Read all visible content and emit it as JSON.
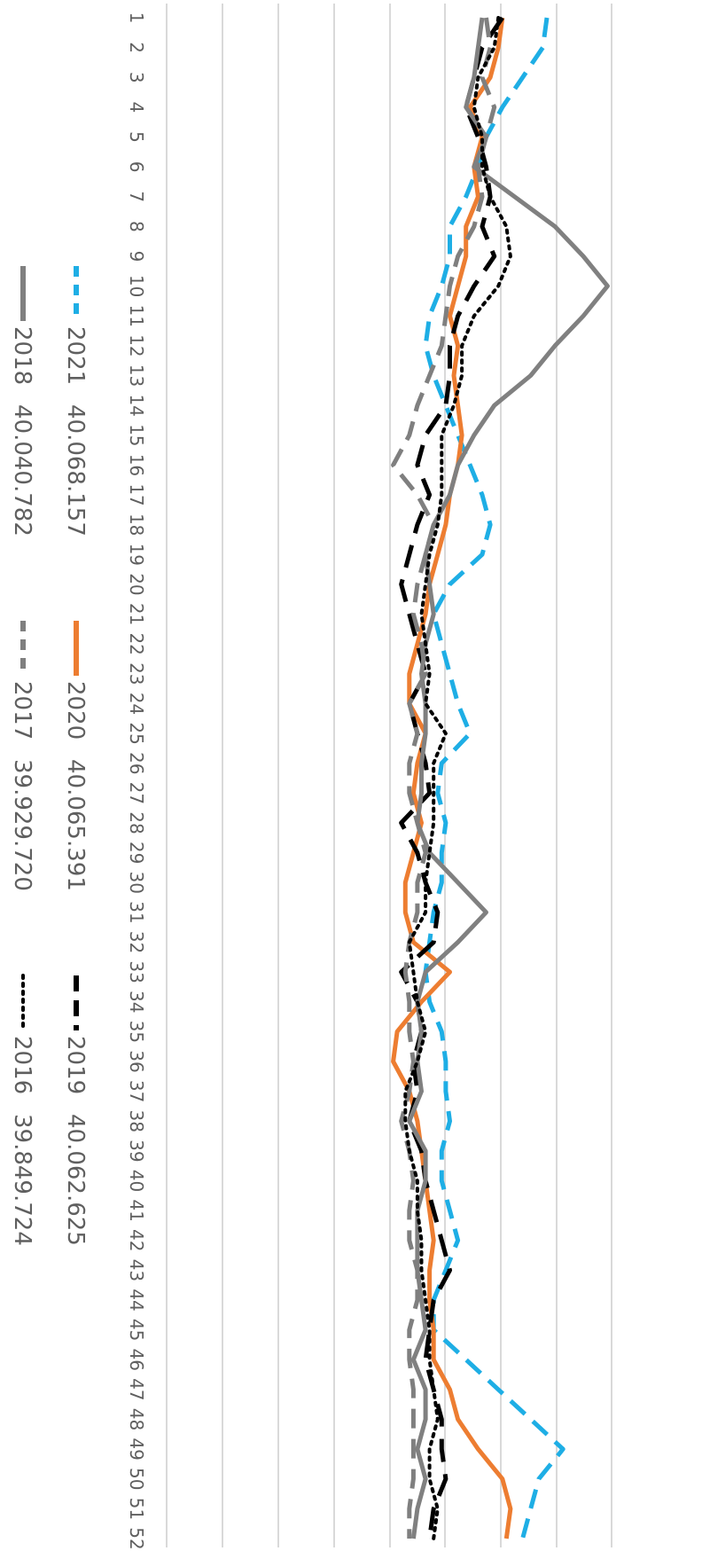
{
  "chart_data": {
    "type": "line",
    "title": "",
    "xlabel": "",
    "ylabel": "",
    "orientation": "rotated-90-clockwise",
    "grid": true,
    "legend_position": "bottom",
    "categories": [
      "1",
      "2",
      "3",
      "4",
      "5",
      "6",
      "7",
      "8",
      "9",
      "10",
      "11",
      "12",
      "13",
      "14",
      "15",
      "16",
      "17",
      "18",
      "19",
      "20",
      "21",
      "22",
      "23",
      "24",
      "25",
      "26",
      "27",
      "28",
      "29",
      "30",
      "31",
      "32",
      "33",
      "34",
      "35",
      "36",
      "37",
      "38",
      "39",
      "40",
      "41",
      "42",
      "43",
      "44",
      "45",
      "46",
      "47",
      "48",
      "49",
      "50",
      "51",
      "52"
    ],
    "series": [
      {
        "name": "2021",
        "legend_value": "40.068.157",
        "color": "#1EAEE5",
        "style": "dashed",
        "values": [
          940,
          930,
          880,
          830,
          790,
          770,
          740,
          700,
          700,
          680,
          650,
          640,
          660,
          690,
          720,
          750,
          780,
          800,
          780,
          700,
          660,
          680,
          700,
          720,
          750,
          680,
          670,
          690,
          680,
          680,
          660,
          650,
          640,
          650,
          680,
          690,
          690,
          700,
          680,
          680,
          700,
          720,
          690,
          660,
          660,
          740,
          820,
          900,
          980,
          920,
          900,
          880
        ]
      },
      {
        "name": "2020",
        "legend_value": "40.065.391",
        "color": "#ED7D31",
        "style": "solid",
        "values": [
          830,
          820,
          800,
          750,
          780,
          760,
          770,
          740,
          740,
          720,
          700,
          720,
          710,
          720,
          730,
          720,
          700,
          690,
          670,
          650,
          640,
          620,
          600,
          600,
          640,
          620,
          610,
          630,
          610,
          590,
          590,
          610,
          700,
          630,
          570,
          560,
          600,
          620,
          630,
          640,
          650,
          660,
          650,
          650,
          660,
          660,
          700,
          720,
          770,
          830,
          850,
          840
        ]
      },
      {
        "name": "2019",
        "legend_value": "40.062.625",
        "color": "#000000",
        "style": "long-dash",
        "values": [
          830,
          780,
          760,
          740,
          770,
          790,
          800,
          780,
          810,
          760,
          720,
          700,
          700,
          690,
          640,
          620,
          650,
          620,
          600,
          580,
          600,
          620,
          640,
          600,
          620,
          640,
          650,
          580,
          620,
          640,
          670,
          660,
          580,
          620,
          630,
          610,
          620,
          600,
          630,
          640,
          660,
          680,
          700,
          660,
          650,
          640,
          660,
          680,
          680,
          690,
          660,
          650
        ]
      },
      {
        "name": "2018",
        "legend_value": "40.040.782",
        "color": "#808080",
        "style": "solid",
        "values": [
          780,
          770,
          760,
          740,
          790,
          760,
          860,
          960,
          1030,
          1090,
          1030,
          960,
          900,
          810,
          760,
          720,
          700,
          660,
          640,
          650,
          660,
          640,
          630,
          640,
          640,
          630,
          630,
          620,
          650,
          720,
          790,
          720,
          640,
          620,
          630,
          620,
          630,
          600,
          640,
          640,
          620,
          620,
          620,
          630,
          640,
          610,
          640,
          640,
          620,
          640,
          620,
          610
        ]
      },
      {
        "name": "2017",
        "legend_value": "39.929.720",
        "color": "#7F7F7F",
        "style": "dashed",
        "values": [
          790,
          800,
          780,
          810,
          790,
          770,
          780,
          760,
          720,
          700,
          690,
          680,
          650,
          620,
          600,
          560,
          620,
          660,
          640,
          620,
          610,
          630,
          640,
          600,
          620,
          600,
          600,
          620,
          640,
          620,
          620,
          600,
          590,
          600,
          600,
          610,
          600,
          580,
          600,
          610,
          600,
          600,
          620,
          620,
          600,
          600,
          610,
          610,
          610,
          610,
          600,
          600
        ]
      },
      {
        "name": "2016",
        "legend_value": "39.849.724",
        "color": "#000000",
        "style": "dotted",
        "values": [
          820,
          810,
          770,
          760,
          780,
          780,
          800,
          840,
          850,
          820,
          760,
          730,
          730,
          710,
          680,
          680,
          680,
          670,
          650,
          640,
          630,
          640,
          650,
          640,
          690,
          660,
          660,
          660,
          650,
          640,
          640,
          600,
          610,
          620,
          640,
          620,
          590,
          590,
          600,
          620,
          620,
          630,
          630,
          640,
          650,
          650,
          660,
          670,
          650,
          650,
          670,
          660
        ]
      }
    ]
  }
}
